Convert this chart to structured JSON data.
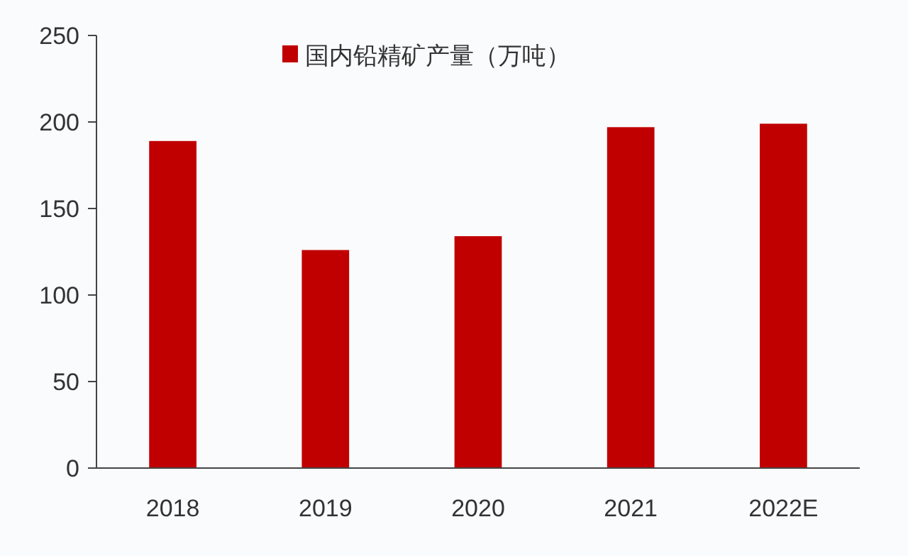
{
  "chart_data": {
    "type": "bar",
    "categories": [
      "2018",
      "2019",
      "2020",
      "2021",
      "2022E"
    ],
    "series": [
      {
        "name": "国内铅精矿产量（万吨）",
        "color": "#c00000",
        "values": [
          189,
          126,
          134,
          197,
          199
        ]
      }
    ],
    "ylim": [
      0,
      250
    ],
    "yticks": [
      0,
      50,
      100,
      150,
      200,
      250
    ],
    "grid": false,
    "legend": "top"
  }
}
